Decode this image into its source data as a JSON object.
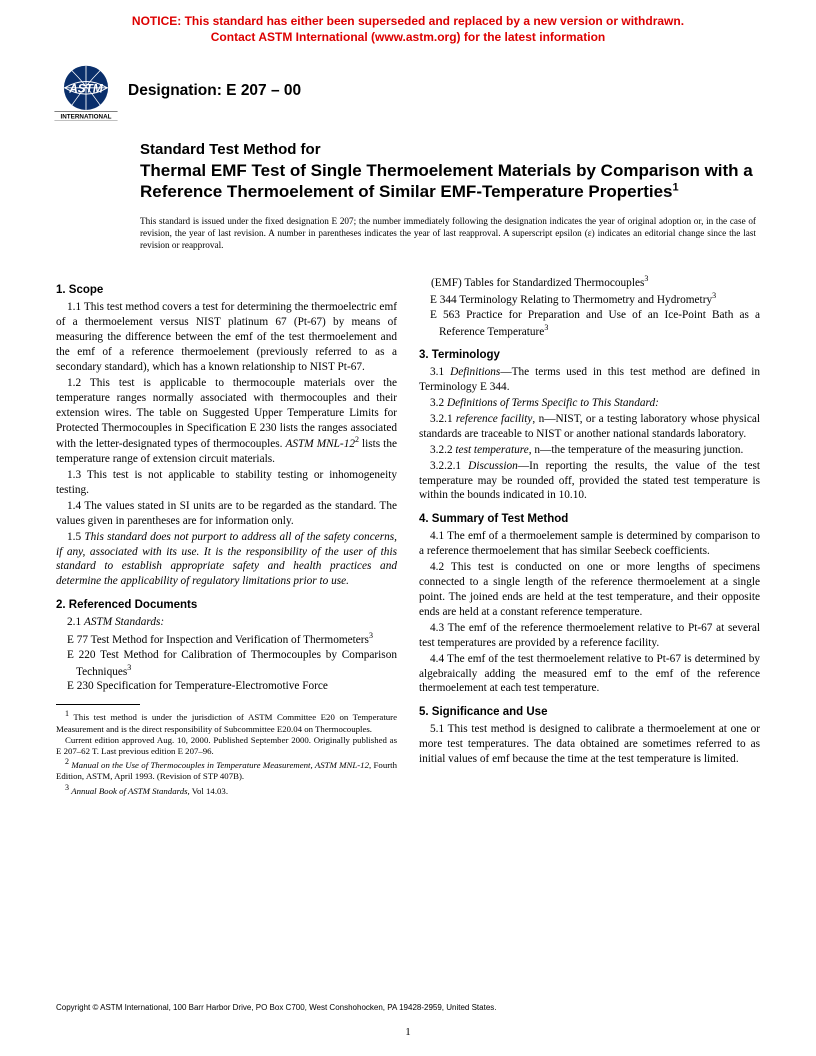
{
  "notice": {
    "line1": "NOTICE: This standard has either been superseded and replaced by a new version or withdrawn.",
    "line2": "Contact ASTM International (www.astm.org) for the latest information"
  },
  "designation": "Designation: E 207 – 00",
  "logo": {
    "top_text": "ASTM",
    "bottom_text": "INTERNATIONAL"
  },
  "title": {
    "prefix": "Standard Test Method for",
    "main": "Thermal EMF Test of Single Thermoelement Materials by Comparison with a Reference Thermoelement of Similar EMF-Temperature Properties",
    "sup": "1"
  },
  "issuance": "This standard is issued under the fixed designation E 207; the number immediately following the designation indicates the year of original adoption or, in the case of revision, the year of last revision. A number in parentheses indicates the year of last reapproval. A superscript epsilon (ε) indicates an editorial change since the last revision or reapproval.",
  "sections": {
    "s1": {
      "head": "1. Scope",
      "p1": "1.1 This test method covers a test for determining the thermoelectric emf of a thermoelement versus NIST platinum 67 (Pt-67) by means of measuring the difference between the emf of the test thermoelement and the emf of a reference thermoelement (previously referred to as a secondary standard), which has a known relationship to NIST Pt-67.",
      "p2a": "1.2 This test is applicable to thermocouple materials over the temperature ranges normally associated with thermocouples and their extension wires. The table on Suggested Upper Temperature Limits for Protected Thermocouples in Specification E 230 lists the ranges associated with the letter-designated types of thermocouples. ",
      "p2b": "ASTM MNL-12",
      "p2sup": "2",
      "p2c": " lists the temperature range of extension circuit materials.",
      "p3": "1.3 This test is not applicable to stability testing or inhomogeneity testing.",
      "p4": "1.4 The values stated in SI units are to be regarded as the standard. The values given in parentheses are for information only.",
      "p5": "1.5 This standard does not purport to address all of the safety concerns, if any, associated with its use. It is the responsibility of the user of this standard to establish appropriate safety and health practices and determine the applicability of regulatory limitations prior to use."
    },
    "s2": {
      "head": "2. Referenced Documents",
      "lead": "2.1 ",
      "lead_i": "ASTM Standards:",
      "r1a": "E 77 Test Method for Inspection and Verification of Thermometers",
      "r2a": "E 220 Test Method for Calibration of Thermocouples by Comparison Techniques",
      "r3a": "E 230 Specification for Temperature-Electromotive Force",
      "r3b": "(EMF) Tables for Standardized Thermocouples",
      "r4a": "E 344 Terminology Relating to Thermometry and Hydrometry",
      "r5a": "E 563 Practice for Preparation and Use of an Ice-Point Bath as a Reference Temperature",
      "sup3": "3"
    },
    "s3": {
      "head": "3. Terminology",
      "p1a": "3.1 ",
      "p1b": "Definitions",
      "p1c": "—The terms used in this test method are defined in Terminology E 344.",
      "p2a": "3.2 ",
      "p2b": "Definitions of Terms Specific to This Standard:",
      "p3a": "3.2.1 ",
      "p3b": "reference facility",
      "p3c": ", n",
      "p3d": "—NIST, or a testing laboratory whose physical standards are traceable to NIST or another national standards laboratory.",
      "p4a": "3.2.2 ",
      "p4b": "test temperature",
      "p4c": ", n",
      "p4d": "—the temperature of the measuring junction.",
      "p5a": "3.2.2.1 ",
      "p5b": "Discussion",
      "p5c": "—In reporting the results, the value of the test temperature may be rounded off, provided the stated test temperature is within the bounds indicated in 10.10."
    },
    "s4": {
      "head": "4. Summary of Test Method",
      "p1": "4.1 The emf of a thermoelement sample is determined by comparison to a reference thermoelement that has similar Seebeck coefficients.",
      "p2": "4.2 This test is conducted on one or more lengths of specimens connected to a single length of the reference thermoelement at a single point. The joined ends are held at the test temperature, and their opposite ends are held at a constant reference temperature.",
      "p3": "4.3 The emf of the reference thermoelement relative to Pt-67 at several test temperatures are provided by a reference facility.",
      "p4": "4.4 The emf of the test thermoelement relative to Pt-67 is determined by algebraically adding the measured emf to the emf of the reference thermoelement at each test temperature."
    },
    "s5": {
      "head": "5. Significance and Use",
      "p1": "5.1 This test method is designed to calibrate a thermoelement at one or more test temperatures. The data obtained are sometimes referred to as initial values of emf because the time at the test temperature is limited."
    }
  },
  "footnotes": {
    "f1a": " This test method is under the jurisdiction of ASTM Committee E20 on Temperature Measurement and is the direct responsibility of Subcommittee E20.04 on Thermocouples.",
    "f1b": "Current edition approved Aug. 10, 2000. Published September 2000. Originally published as E 207–62 T. Last previous edition E 207–96.",
    "f2a": "Manual on the Use of Thermocouples in Temperature Measurement, ASTM MNL-12",
    "f2b": ", Fourth Edition, ASTM, April 1993. (Revision of STP 407B).",
    "f3a": "Annual Book of ASTM Standards",
    "f3b": ", Vol 14.03."
  },
  "copyright": "Copyright © ASTM International, 100 Barr Harbor Drive, PO Box C700, West Conshohocken, PA 19428-2959, United States.",
  "pagenum": "1",
  "colors": {
    "notice_red": "#dd0000",
    "text": "#000000",
    "bg": "#ffffff"
  }
}
